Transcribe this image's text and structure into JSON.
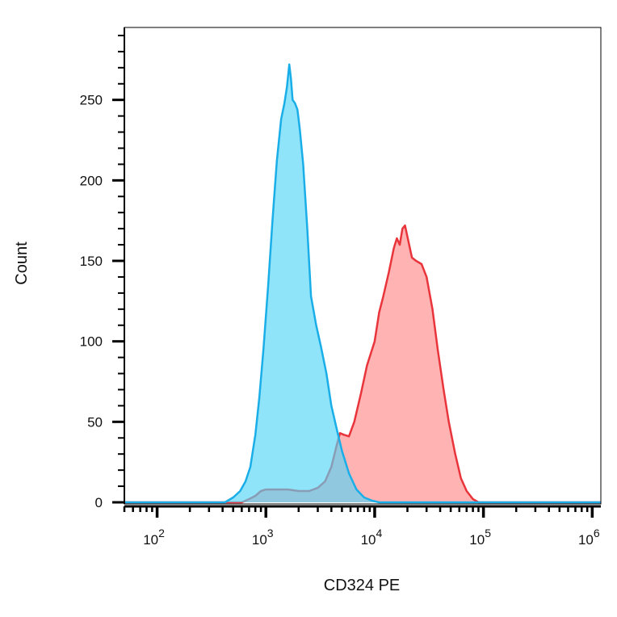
{
  "chart_data": {
    "type": "area",
    "xlabel": "CD324 PE",
    "ylabel": "Count",
    "x_scale": "log",
    "xlim": [
      50,
      1200000
    ],
    "ylim": [
      0,
      295
    ],
    "x_ticks": [
      {
        "value": 100,
        "base": "10",
        "exp": "2"
      },
      {
        "value": 1000,
        "base": "10",
        "exp": "3"
      },
      {
        "value": 10000,
        "base": "10",
        "exp": "4"
      },
      {
        "value": 100000,
        "base": "10",
        "exp": "5"
      },
      {
        "value": 1000000,
        "base": "10",
        "exp": "6"
      }
    ],
    "y_ticks": [
      {
        "value": 0,
        "label": "0"
      },
      {
        "value": 50,
        "label": "50"
      },
      {
        "value": 100,
        "label": "100"
      },
      {
        "value": 150,
        "label": "150"
      },
      {
        "value": 200,
        "label": "200"
      },
      {
        "value": 250,
        "label": "250"
      }
    ],
    "grid": false,
    "legend": "none",
    "series": [
      {
        "color": "#ff8a8a",
        "stroke": "#e8343a",
        "points": [
          [
            50,
            0
          ],
          [
            600,
            0
          ],
          [
            700,
            2
          ],
          [
            800,
            4
          ],
          [
            900,
            7
          ],
          [
            1000,
            8
          ],
          [
            1300,
            8
          ],
          [
            1600,
            8
          ],
          [
            2000,
            7
          ],
          [
            2500,
            7
          ],
          [
            3000,
            9
          ],
          [
            3500,
            13
          ],
          [
            4000,
            22
          ],
          [
            4500,
            36
          ],
          [
            4800,
            43
          ],
          [
            5200,
            42
          ],
          [
            5800,
            41
          ],
          [
            6500,
            50
          ],
          [
            7500,
            68
          ],
          [
            8500,
            85
          ],
          [
            10000,
            100
          ],
          [
            11000,
            118
          ],
          [
            12000,
            128
          ],
          [
            13500,
            143
          ],
          [
            15000,
            158
          ],
          [
            16000,
            164
          ],
          [
            17000,
            160
          ],
          [
            18000,
            170
          ],
          [
            19000,
            172
          ],
          [
            20000,
            165
          ],
          [
            22000,
            152
          ],
          [
            24000,
            150
          ],
          [
            27000,
            148
          ],
          [
            30000,
            140
          ],
          [
            34000,
            120
          ],
          [
            38000,
            95
          ],
          [
            43000,
            70
          ],
          [
            48000,
            50
          ],
          [
            55000,
            30
          ],
          [
            62000,
            15
          ],
          [
            70000,
            7
          ],
          [
            80000,
            2
          ],
          [
            90000,
            0
          ],
          [
            1200000,
            0
          ]
        ]
      },
      {
        "color": "#54d6f8",
        "stroke": "#1aaee8",
        "points": [
          [
            50,
            0
          ],
          [
            420,
            0
          ],
          [
            500,
            3
          ],
          [
            580,
            7
          ],
          [
            650,
            13
          ],
          [
            720,
            22
          ],
          [
            800,
            42
          ],
          [
            870,
            65
          ],
          [
            950,
            95
          ],
          [
            1050,
            135
          ],
          [
            1150,
            175
          ],
          [
            1260,
            212
          ],
          [
            1380,
            238
          ],
          [
            1480,
            248
          ],
          [
            1560,
            258
          ],
          [
            1640,
            272
          ],
          [
            1700,
            263
          ],
          [
            1760,
            250
          ],
          [
            1850,
            248
          ],
          [
            1950,
            244
          ],
          [
            2050,
            232
          ],
          [
            2200,
            210
          ],
          [
            2400,
            170
          ],
          [
            2600,
            128
          ],
          [
            2900,
            110
          ],
          [
            3200,
            97
          ],
          [
            3600,
            80
          ],
          [
            4000,
            60
          ],
          [
            4500,
            45
          ],
          [
            5000,
            32
          ],
          [
            5800,
            18
          ],
          [
            6800,
            8
          ],
          [
            8000,
            3
          ],
          [
            9500,
            1
          ],
          [
            11000,
            0
          ],
          [
            1200000,
            0
          ]
        ]
      }
    ]
  }
}
